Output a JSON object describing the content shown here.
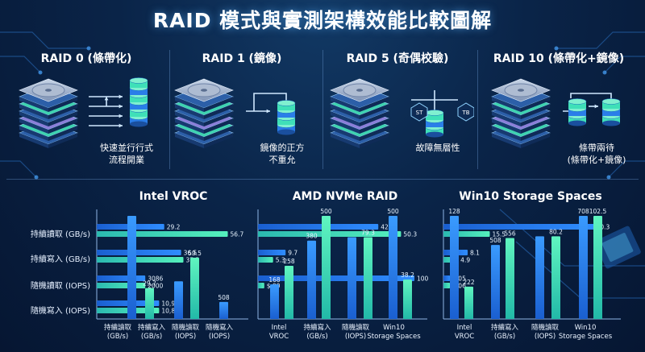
{
  "title": "RAID 模式與實測架構效能比較圖解",
  "colors": {
    "blue": "#1f7bf0",
    "green": "#3fe3b0",
    "accent": "#54c7ff"
  },
  "raid": [
    {
      "label": "RAID 0 (條帶化)",
      "caption": [
        "快速並行行式",
        "流程開業"
      ]
    },
    {
      "label": "RAID 1 (鏡像)",
      "caption": [
        "鏡像的正方",
        "不重允"
      ]
    },
    {
      "label": "RAID 5 (奇偶校驗)",
      "caption": [
        "故障無層性"
      ],
      "badges": [
        "ST",
        "TB"
      ]
    },
    {
      "label": "RAID 10 (條帶化+鏡像)",
      "caption": [
        "條帶兩待",
        "(條帶化+鏡像)"
      ]
    }
  ],
  "row_labels": [
    "持續讀取 (GB/s)",
    "持續寫入 (GB/s)",
    "隨機讀取 (IOPS)",
    "隨機寫入 (IOPS)"
  ],
  "chart_data": [
    {
      "type": "bar",
      "title": "Intel VROC",
      "horizontal_bars": [
        {
          "series": "blue",
          "value": 29.2,
          "label": "29.2"
        },
        {
          "series": "green",
          "value": 56.7,
          "label": "56.7"
        },
        {
          "series": "blue",
          "value": 36.5,
          "label": "36.5"
        },
        {
          "series": "green",
          "value": 37.5,
          "label": "37.5"
        },
        {
          "series": "blue",
          "value": 3086,
          "label": "3086"
        },
        {
          "series": "green",
          "value": 2000,
          "label": "2000"
        },
        {
          "series": "blue",
          "value": 10952,
          "label": "10,952"
        },
        {
          "series": "green",
          "value": 10852,
          "label": "10,852"
        }
      ],
      "categories": [
        "持續讀取\n(GB/s)",
        "持續寫入\n(GB/s)",
        "隨機讀取\n(IOPS)",
        "隨機寫入\n(IOPS)"
      ],
      "vertical_bars": [
        {
          "series": "blue",
          "value": 3086,
          "label": ""
        },
        {
          "series": "green",
          "value": 29.7,
          "label": "29.7"
        },
        {
          "series": "blue",
          "value": 36.5,
          "label": ""
        },
        {
          "series": "green",
          "value": 59.5,
          "label": "59.5"
        },
        {
          "series": "blue",
          "value": 508,
          "label": "508"
        }
      ]
    },
    {
      "type": "bar",
      "title": "AMD NVMe RAID",
      "horizontal_bars": [
        {
          "series": "blue",
          "value": 42.3,
          "label": "42.3"
        },
        {
          "series": "green",
          "value": 50.3,
          "label": "50.3"
        },
        {
          "series": "blue",
          "value": 9.7,
          "label": "9.7"
        },
        {
          "series": "green",
          "value": 5.3,
          "label": "5.3"
        },
        {
          "series": "blue",
          "value": 100,
          "label": "100"
        },
        {
          "series": "green",
          "value": 0,
          "label": "$.00"
        }
      ],
      "categories": [
        "Intel\nVROC",
        "持續寫入\n(GB/s)",
        "隨機讀取\n(IOPS)",
        "Win10\nStorage Spaces"
      ],
      "vertical_bars": [
        {
          "series": "blue",
          "value": 168,
          "label": "168"
        },
        {
          "series": "green",
          "value": 258,
          "label": "258"
        },
        {
          "series": "blue",
          "value": 380,
          "label": "380"
        },
        {
          "series": "green",
          "value": 500,
          "label": "500"
        },
        {
          "series": "blue",
          "value": 79.3,
          "label": ""
        },
        {
          "series": "green",
          "value": 79.3,
          "label": "79.3"
        },
        {
          "series": "blue",
          "value": 500,
          "label": "500"
        },
        {
          "series": "green",
          "value": 38.2,
          "label": "38.2"
        }
      ]
    },
    {
      "type": "bar",
      "title": "Win10 Storage Spaces",
      "horizontal_bars": [
        {
          "series": "blue",
          "value": 50.3,
          "label": "50.3"
        },
        {
          "series": "green",
          "value": 15.5,
          "label": "15.5"
        },
        {
          "series": "blue",
          "value": 8.1,
          "label": "8.1"
        },
        {
          "series": "green",
          "value": 4.9,
          "label": "4.9"
        },
        {
          "series": "blue",
          "value": 1.05,
          "label": "1.05"
        },
        {
          "series": "green",
          "value": 0.06,
          "label": "0.06"
        }
      ],
      "categories": [
        "Intel\nVROC",
        "持續寫入\n(GB/s)",
        "隨機讀取\n(IOPS)",
        "Win10\nStorage Spaces"
      ],
      "vertical_bars": [
        {
          "series": "blue",
          "value": 128,
          "label": "128"
        },
        {
          "series": "green",
          "value": 222,
          "label": "222"
        },
        {
          "series": "blue",
          "value": 508,
          "label": "508"
        },
        {
          "series": "green",
          "value": 556,
          "label": "556"
        },
        {
          "series": "blue",
          "value": 80.2,
          "label": ""
        },
        {
          "series": "green",
          "value": 80.2,
          "label": "80.2"
        },
        {
          "series": "blue",
          "value": 708,
          "label": "708"
        },
        {
          "series": "green",
          "value": 102.5,
          "label": "102.5"
        }
      ]
    }
  ]
}
